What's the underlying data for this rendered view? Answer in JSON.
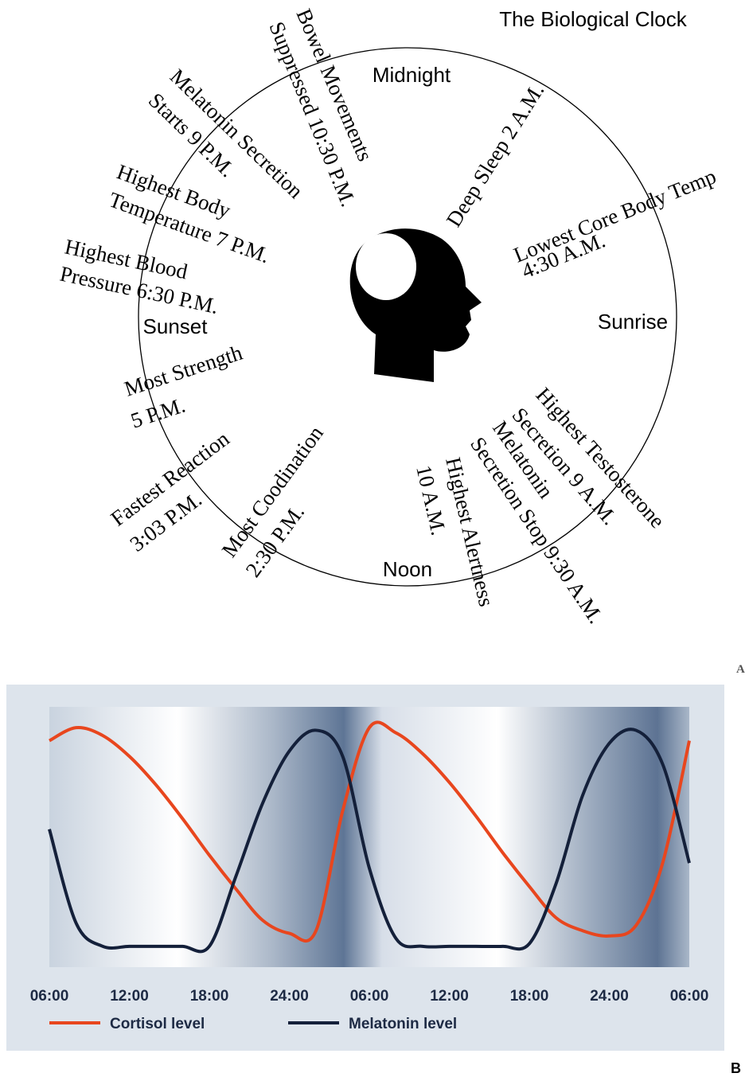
{
  "clock": {
    "title": "The Biological Clock",
    "periods": [
      "Midnight",
      "Sunrise",
      "Noon",
      "Sunset"
    ],
    "events": [
      {
        "lines": [
          "Bowel Movements",
          "Suppressed 10:30 P.M."
        ]
      },
      {
        "lines": [
          "Deep Sleep 2 A.M."
        ]
      },
      {
        "lines": [
          "Lowest Core Body Temp",
          "4:30 A.M."
        ]
      },
      {
        "lines": [
          "Highest Testosterone",
          "Secretion 9 A.M."
        ]
      },
      {
        "lines": [
          "Melatonin",
          "Secretion Stop 9:30 A.M."
        ]
      },
      {
        "lines": [
          "Highest Alertness",
          "10 A.M."
        ]
      },
      {
        "lines": [
          "Most Coodination",
          "2:30 P.M."
        ]
      },
      {
        "lines": [
          "Fastest Reaction",
          "3:03 P.M."
        ]
      },
      {
        "lines": [
          "Most Strength",
          "5 P.M."
        ]
      },
      {
        "lines": [
          "Highest Blood",
          "Pressure 6:30 P.M."
        ]
      },
      {
        "lines": [
          "Highest Body",
          "Temperature 7 P.M."
        ]
      },
      {
        "lines": [
          "Melatonin Secretion",
          "Starts 9 P.M."
        ]
      }
    ],
    "panel_label": "A"
  },
  "chart_data": {
    "type": "line",
    "panel_label": "B",
    "x": [
      0,
      2,
      4,
      6,
      8,
      10,
      12,
      14,
      16,
      18,
      20,
      22,
      24,
      26,
      28,
      30,
      32,
      34,
      36,
      38,
      40,
      42,
      44,
      46,
      48
    ],
    "xlim": [
      0,
      48
    ],
    "xticks": [
      {
        "value": 0,
        "label": "06:00"
      },
      {
        "value": 6,
        "label": "12:00"
      },
      {
        "value": 12,
        "label": "18:00"
      },
      {
        "value": 18,
        "label": "24:00"
      },
      {
        "value": 24,
        "label": "06:00"
      },
      {
        "value": 30,
        "label": "12:00"
      },
      {
        "value": 36,
        "label": "18:00"
      },
      {
        "value": 42,
        "label": "24:00"
      },
      {
        "value": 48,
        "label": "06:00"
      }
    ],
    "ylim": [
      0,
      100
    ],
    "series": [
      {
        "name": "Cortisol level",
        "color": "#e8461e",
        "values": [
          87,
          92,
          89,
          81,
          70,
          57,
          43,
          30,
          18,
          13,
          14,
          60,
          92,
          90,
          82,
          71,
          58,
          44,
          31,
          19,
          14,
          12,
          16,
          40,
          87
        ]
      },
      {
        "name": "Melatonin level",
        "color": "#14203a",
        "values": [
          53,
          17,
          8,
          8,
          8,
          8,
          8,
          35,
          63,
          83,
          91,
          81,
          38,
          11,
          8,
          8,
          8,
          8,
          9,
          32,
          66,
          86,
          91,
          78,
          40
        ]
      }
    ]
  }
}
